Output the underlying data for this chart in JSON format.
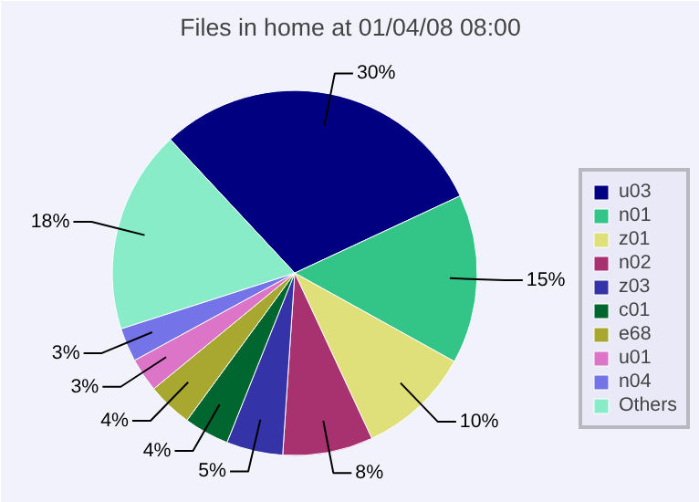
{
  "chart_data": {
    "type": "pie",
    "title": "Files in home at 01/04/08 08:00",
    "categories": [
      "u03",
      "n01",
      "z01",
      "n02",
      "z03",
      "c01",
      "e68",
      "u01",
      "n04",
      "Others"
    ],
    "values": [
      30,
      15,
      10,
      8,
      5,
      4,
      4,
      3,
      3,
      18
    ],
    "value_labels": [
      "30%",
      "15%",
      "10%",
      "8%",
      "5%",
      "4%",
      "4%",
      "3%",
      "3%",
      "18%"
    ],
    "colors": [
      "#000080",
      "#33c488",
      "#e0e07a",
      "#a83270",
      "#3434a8",
      "#00662f",
      "#a8a830",
      "#dc74c8",
      "#7474e8",
      "#88ecc8"
    ],
    "legend": "right"
  }
}
